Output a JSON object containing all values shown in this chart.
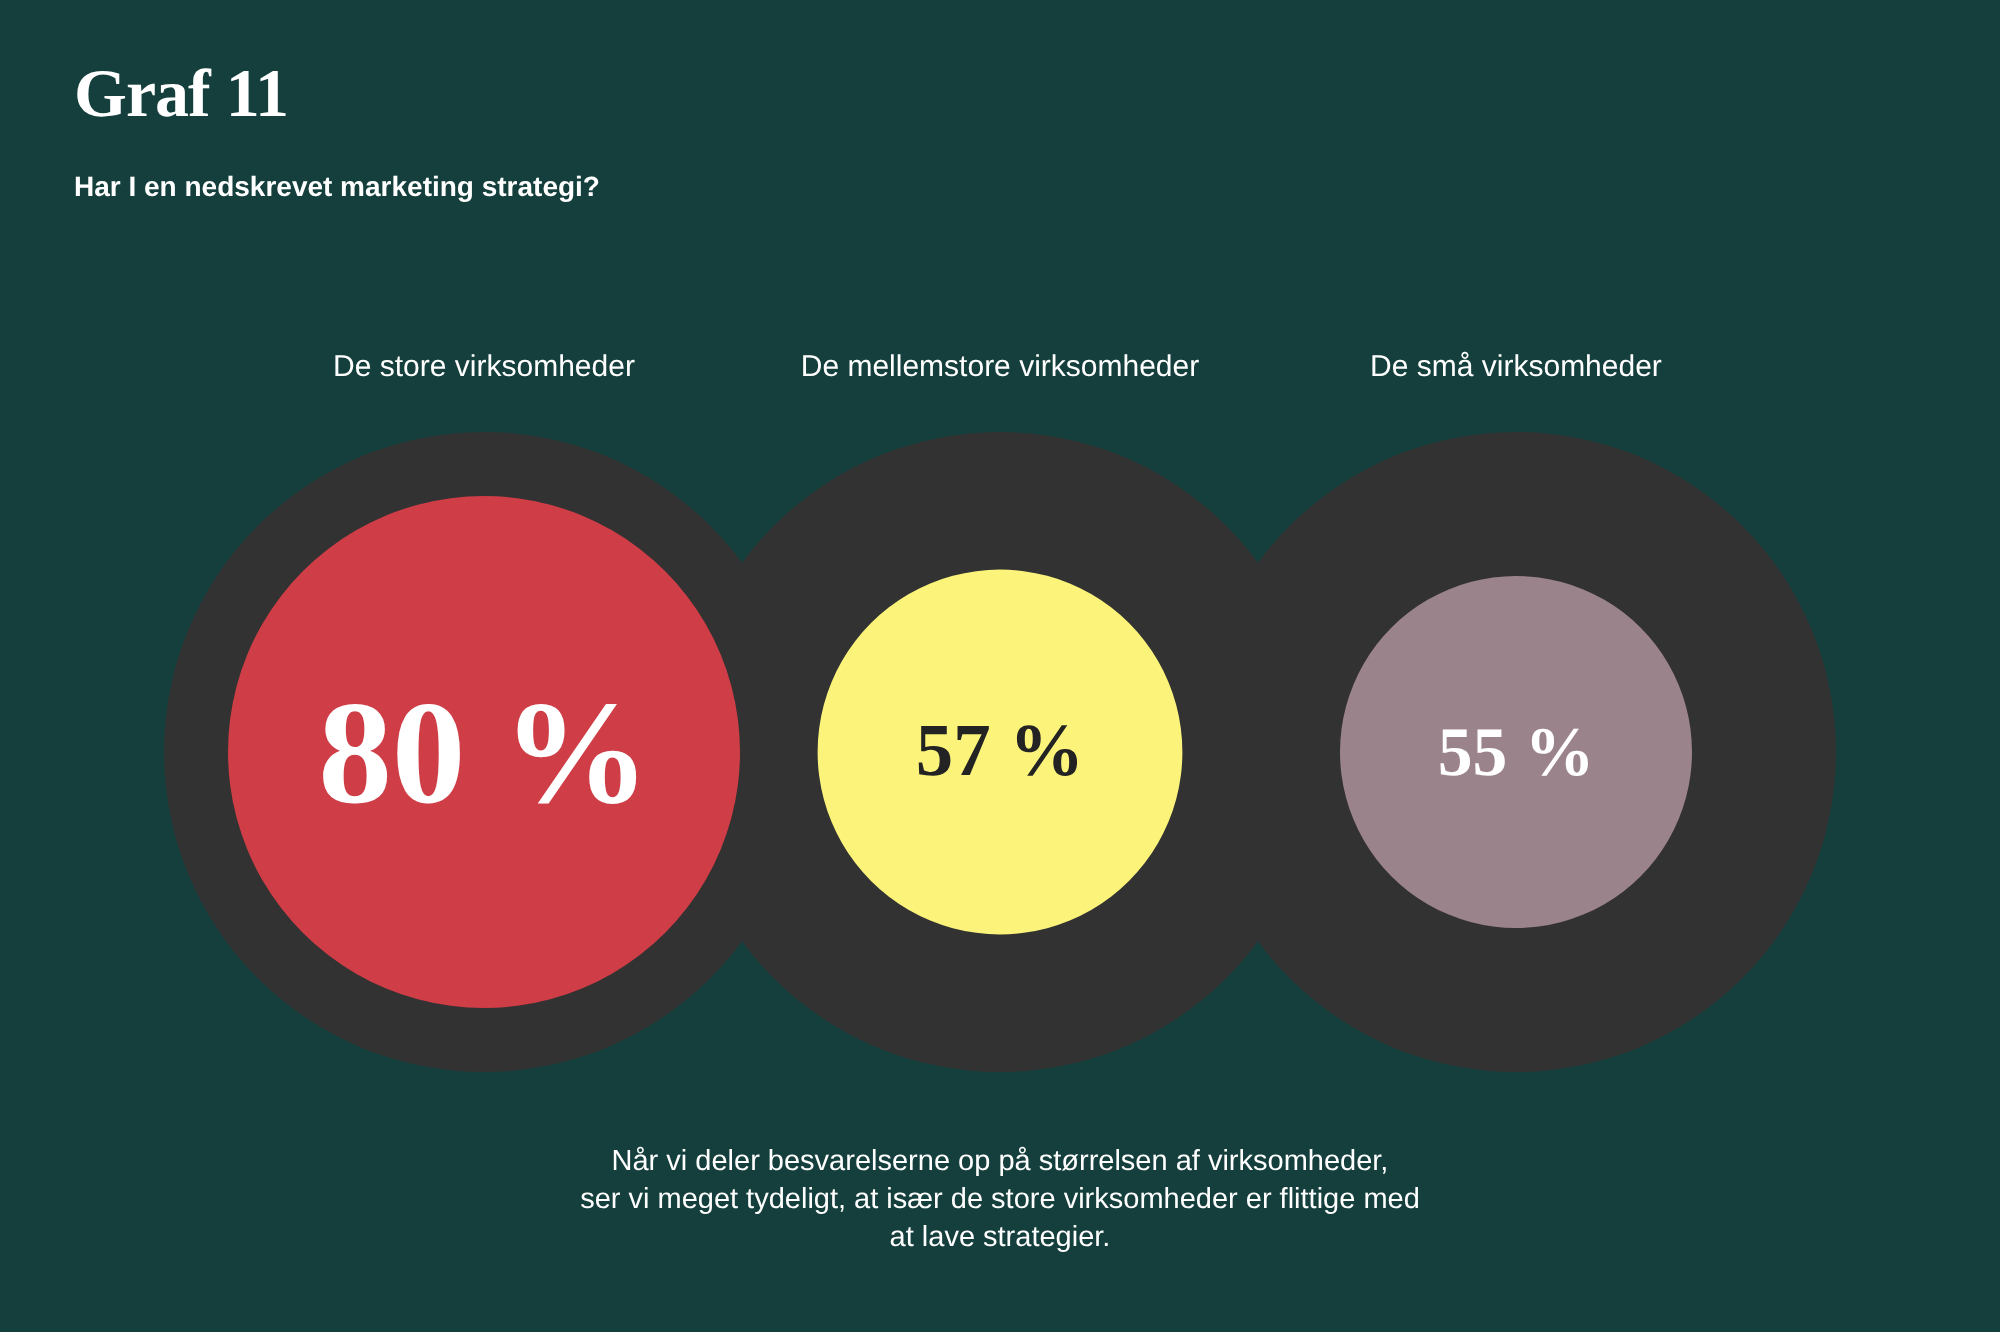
{
  "chart_data": {
    "type": "other",
    "title": "Graf 11",
    "subtitle": "Har I en nedskrevet marketing strategi?",
    "categories": [
      "De store virksomheder",
      "De mellemstore virksomheder",
      "De små virksomheder"
    ],
    "values": [
      80,
      57,
      55
    ],
    "colors": [
      "#cf3d46",
      "#fcf47a",
      "#9b838c"
    ],
    "value_labels": [
      "80 %",
      "57 %",
      "55 %"
    ],
    "annotations": [
      "Når vi deler besvarelserne op på størrelsen af virksomheder,\nser vi meget tydeligt, at især de store virksomheder er flittige med\nat lave strategier."
    ]
  }
}
